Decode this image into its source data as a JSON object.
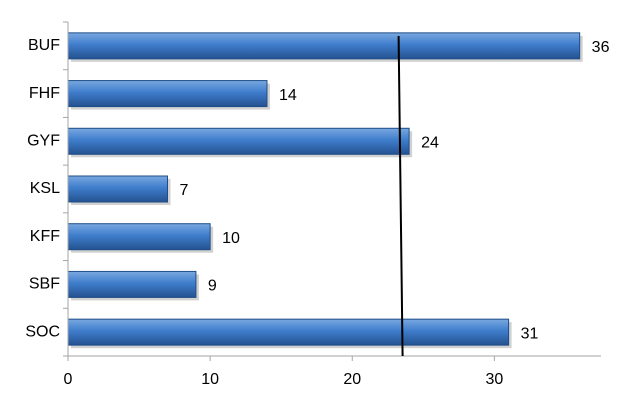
{
  "chart_data": {
    "type": "bar",
    "orientation": "horizontal",
    "title": "",
    "xlabel": "",
    "ylabel": "",
    "categories": [
      "BUF",
      "FHF",
      "GYF",
      "KSL",
      "KFF",
      "SBF",
      "SOC"
    ],
    "values": [
      36,
      14,
      24,
      7,
      10,
      9,
      31
    ],
    "value_labels": [
      "36",
      "14",
      "24",
      "7",
      "10",
      "9",
      "31"
    ],
    "xlim": [
      0,
      37.5
    ],
    "xticks": [
      0,
      10,
      20,
      30
    ],
    "xtick_labels": [
      "0",
      "10",
      "20",
      "30"
    ],
    "reference_line": 23.4,
    "grid": false,
    "legend": "none",
    "colors": {
      "bar_light": "#79a8e0",
      "bar_mid": "#3f7dcc",
      "bar_dark": "#245290",
      "bar_edge": "#1f4d87",
      "axis": "#a6a6a6",
      "reference_line": "#000000"
    }
  }
}
